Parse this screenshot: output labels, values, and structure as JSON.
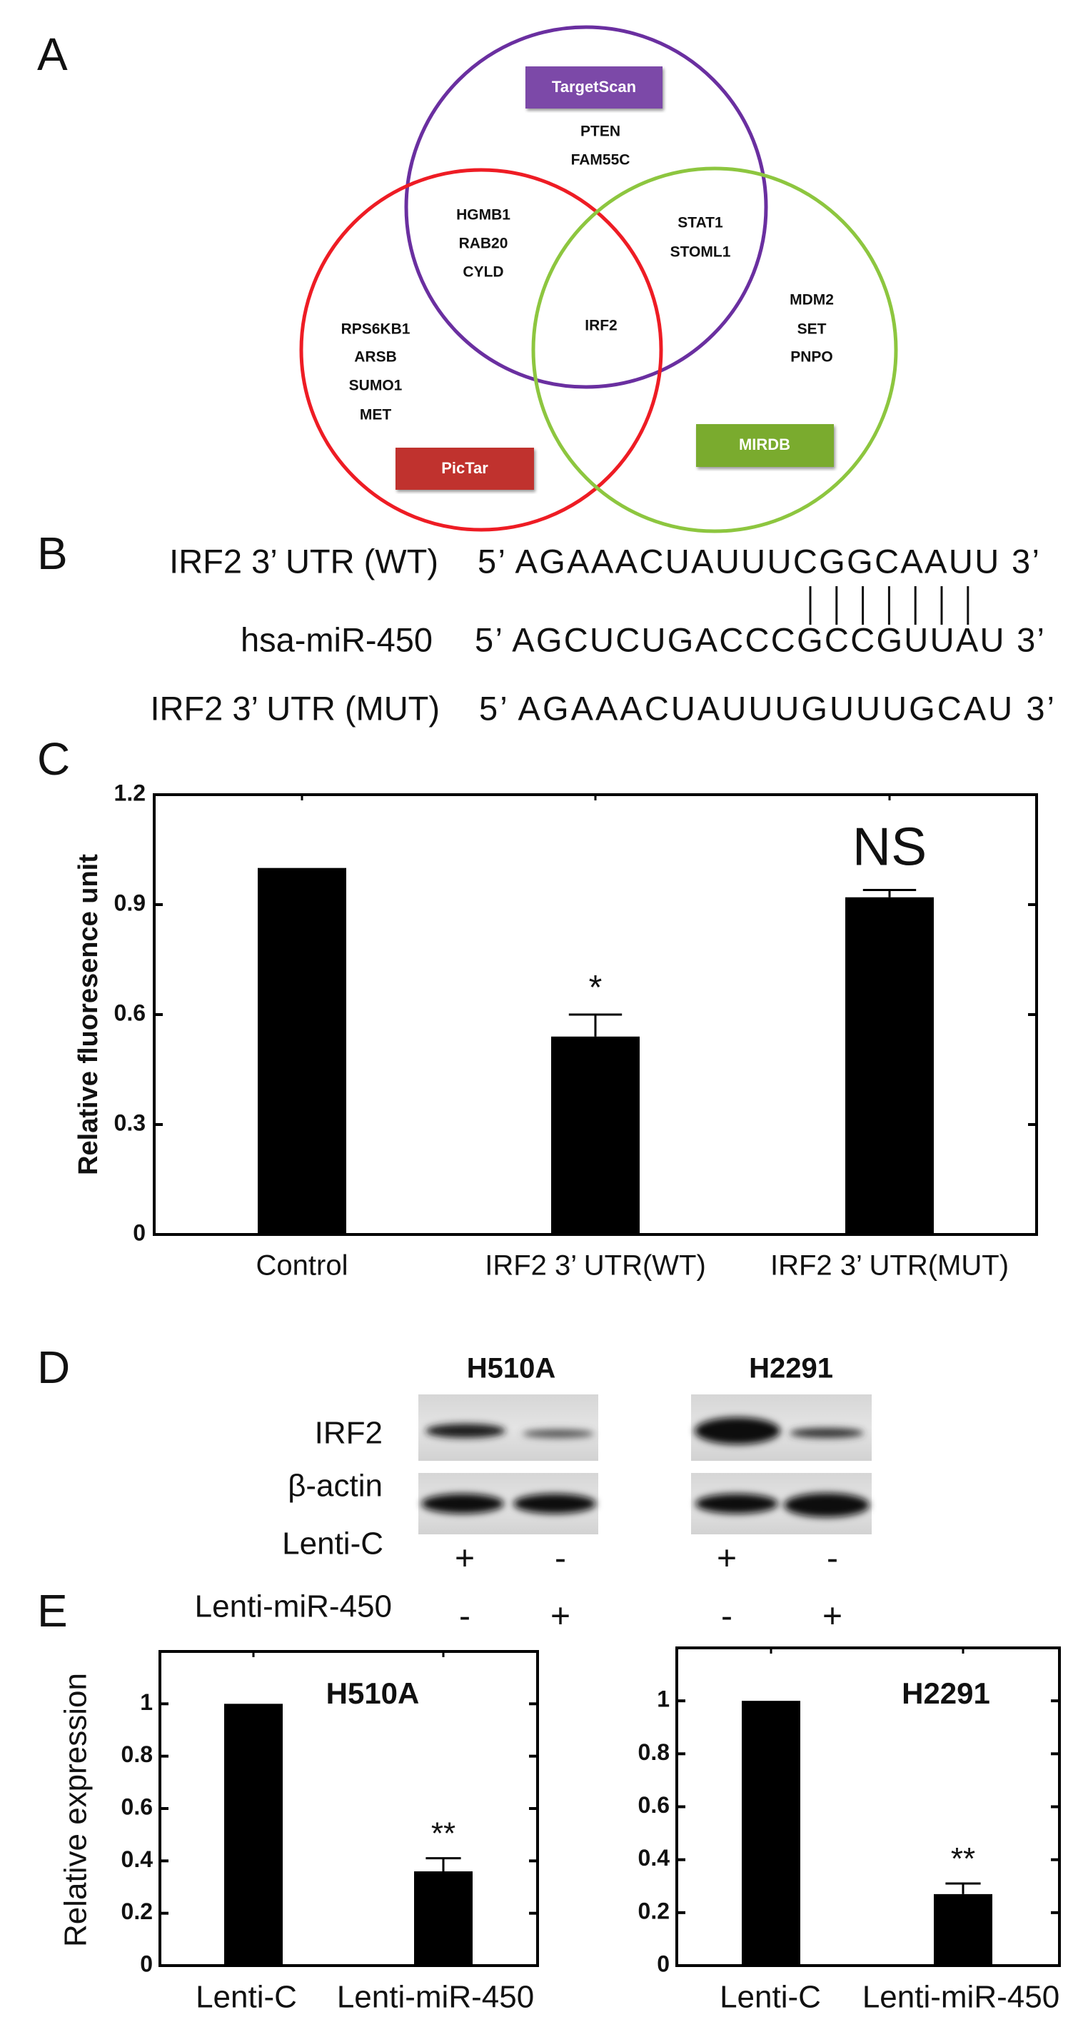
{
  "panels": {
    "a": "A",
    "b": "B",
    "c": "C",
    "d": "D",
    "e": "E"
  },
  "venn": {
    "sets": [
      {
        "label": "TargetScan",
        "circle_color": "#6a2fa0",
        "box_color": "#7b4aa8"
      },
      {
        "label": "PicTar",
        "circle_color": "#ee1c24",
        "box_color": "#c0302e"
      },
      {
        "label": "MIRDB",
        "circle_color": "#8dc63f",
        "box_color": "#7aab2e"
      }
    ],
    "regions": {
      "targetscan_only": [
        "PTEN",
        "FAM55C"
      ],
      "targetscan_pictar": [
        "HGMB1",
        "RAB20",
        "CYLD"
      ],
      "targetscan_mirdb": [
        "STAT1",
        "STOML1"
      ],
      "all_three": [
        "IRF2"
      ],
      "pictar_only": [
        "RPS6KB1",
        "ARSB",
        "SUMO1",
        "MET"
      ],
      "mirdb_only": [
        "MDM2",
        "SET",
        "PNPO"
      ]
    }
  },
  "sequences": [
    {
      "label": "IRF2  3’ UTR (WT)",
      "seq": "5’ AGAAACUAUUUCGGCAAUU 3’"
    },
    {
      "label": "hsa-miR-450",
      "seq": "5’ AGCUCUGACCCGCCGUUAU 3’"
    },
    {
      "label": "IRF2  3’ UTR (MUT)",
      "seq": "5’ AGAAACUAUUUGUUUGCAU  3’"
    }
  ],
  "western": {
    "cell_lines": [
      "H510A",
      "H2291"
    ],
    "proteins": [
      "IRF2",
      "β-actin"
    ],
    "conditions": [
      {
        "label": "Lenti-C",
        "marks": [
          "+",
          "-",
          "+",
          "-"
        ]
      },
      {
        "label": "Lenti-miR-450",
        "marks": [
          "-",
          "+",
          "-",
          "+"
        ]
      }
    ]
  },
  "chart_data": [
    {
      "type": "bar",
      "panel": "C",
      "categories": [
        "Control",
        "IRF2 3’ UTR(WT)",
        "IRF2 3’ UTR(MUT)"
      ],
      "values": [
        1.0,
        0.54,
        0.92
      ],
      "errors": [
        0.0,
        0.06,
        0.02
      ],
      "annotations": [
        "",
        "*",
        "NS"
      ],
      "ylabel": "Relative fluoresence unit",
      "xlabel": "",
      "ylim": [
        0,
        1.2
      ],
      "yticks": [
        0,
        0.3,
        0.6,
        0.9,
        1.2
      ],
      "ytick_labels": [
        "0",
        "0.3",
        "0.6",
        "0.9",
        "1.2"
      ],
      "bar_color": "#000000",
      "grid": false
    },
    {
      "type": "bar",
      "panel": "E",
      "title": "H510A",
      "categories": [
        "Lenti-C",
        "Lenti-miR-450"
      ],
      "values": [
        1.0,
        0.36
      ],
      "errors": [
        0.0,
        0.05
      ],
      "annotations": [
        "",
        "**"
      ],
      "ylabel": "Relative expression",
      "ylim": [
        0,
        1.2
      ],
      "yticks": [
        0,
        0.2,
        0.4,
        0.6,
        0.8,
        1
      ],
      "ytick_labels": [
        "0",
        "0.2",
        "0.4",
        "0.6",
        "0.8",
        "1"
      ],
      "bar_color": "#000000",
      "grid": false
    },
    {
      "type": "bar",
      "panel": "E",
      "title": "H2291",
      "categories": [
        "Lenti-C",
        "Lenti-miR-450"
      ],
      "values": [
        1.0,
        0.27
      ],
      "errors": [
        0.0,
        0.04
      ],
      "annotations": [
        "",
        "**"
      ],
      "ylim": [
        0,
        1.2
      ],
      "yticks": [
        0,
        0.2,
        0.4,
        0.6,
        0.8,
        1
      ],
      "ytick_labels": [
        "0",
        "0.2",
        "0.4",
        "0.6",
        "0.8",
        "1"
      ],
      "bar_color": "#000000",
      "grid": false
    }
  ]
}
